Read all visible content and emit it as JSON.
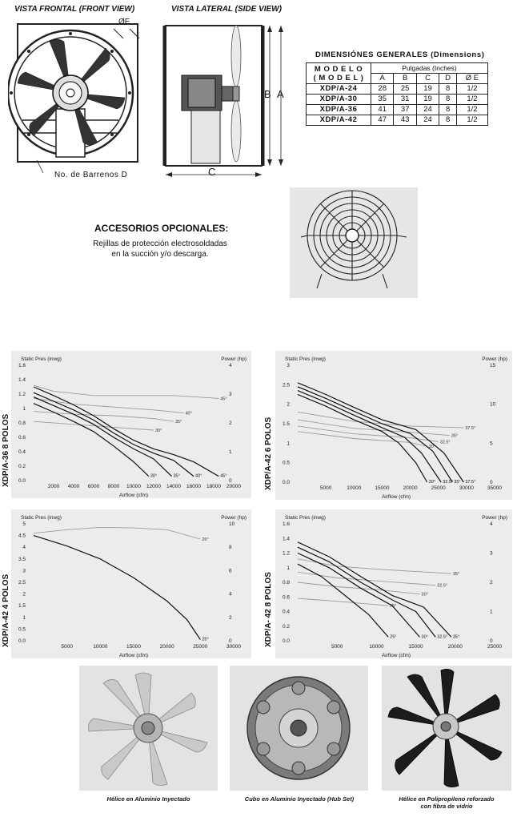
{
  "drawings": {
    "front_view_title": "VISTA FRONTAL (FRONT VIEW)",
    "side_view_title": "VISTA LATERAL (SIDE VIEW)",
    "diameter_label": "ØE",
    "bolt_holes_label": "No. de Barrenos D",
    "dim_b": "B",
    "dim_a": "A",
    "dim_c": "C"
  },
  "dimensions": {
    "title": "DIMENSIÓNES   GENERALES (Dimensions)",
    "model_header": "M O D E L O",
    "model_header_en": "( M O D E L )",
    "units_header": "Pulgadas (Inches)",
    "columns": [
      "A",
      "B",
      "C",
      "D",
      "Ø E"
    ],
    "rows": [
      {
        "model": "XDP/A-24",
        "values": [
          "28",
          "25",
          "19",
          "8",
          "1/2"
        ]
      },
      {
        "model": "XDP/A-30",
        "values": [
          "35",
          "31",
          "19",
          "8",
          "1/2"
        ]
      },
      {
        "model": "XDP/A-36",
        "values": [
          "41",
          "37",
          "24",
          "8",
          "1/2"
        ]
      },
      {
        "model": "XDP/A-42",
        "values": [
          "47",
          "43",
          "24",
          "8",
          "1/2"
        ]
      }
    ]
  },
  "accessories": {
    "title": "ACCESORIOS OPCIONALES:",
    "line1": "Rejillas de protección electrosoldadas",
    "line2": "en la succión y/o descarga."
  },
  "chart_data": [
    {
      "type": "line",
      "side_label": "XDP/A-36  8 POLOS",
      "ylabel": "Static Pres (inwg)",
      "y2label": "Power (hp)",
      "xlabel": "Airflow (cfm)",
      "xlim": [
        0,
        20000
      ],
      "ylim": [
        0,
        1.6
      ],
      "y2lim": [
        0,
        4
      ],
      "xticks": [
        2000,
        4000,
        6000,
        8000,
        10000,
        12000,
        14000,
        16000,
        18000,
        20000
      ],
      "xtick_labels": [
        "2000",
        "4000",
        "6000",
        "8000",
        "10000",
        "12000",
        "14000",
        "16000",
        "18000",
        "20000"
      ],
      "yticks": [
        0,
        0.2,
        0.4,
        0.6,
        0.8,
        1,
        1.2,
        1.4,
        1.6
      ],
      "ytick_labels": [
        "0.0",
        "0.2",
        "0.4",
        "0.6",
        "0.8",
        "1",
        "1.2",
        "1.4",
        "1.6"
      ],
      "y2ticks": [
        0,
        1,
        2,
        3,
        4
      ],
      "y2tick_labels": [
        "0",
        "1",
        "2",
        "3",
        "4"
      ],
      "pressure_curves": [
        {
          "label": "30°",
          "points": [
            [
              0,
              1.07
            ],
            [
              2000,
              0.95
            ],
            [
              4000,
              0.82
            ],
            [
              6000,
              0.68
            ],
            [
              8000,
              0.48
            ],
            [
              10000,
              0.26
            ],
            [
              11500,
              0.06
            ]
          ]
        },
        {
          "label": "35°",
          "points": [
            [
              0,
              1.16
            ],
            [
              2000,
              1.04
            ],
            [
              4000,
              0.92
            ],
            [
              6000,
              0.78
            ],
            [
              8000,
              0.6
            ],
            [
              10000,
              0.44
            ],
            [
              12000,
              0.3
            ],
            [
              13800,
              0.06
            ]
          ]
        },
        {
          "label": "40°",
          "points": [
            [
              0,
              1.22
            ],
            [
              2000,
              1.1
            ],
            [
              4000,
              0.98
            ],
            [
              6000,
              0.84
            ],
            [
              8000,
              0.66
            ],
            [
              10000,
              0.5
            ],
            [
              12000,
              0.38
            ],
            [
              14000,
              0.28
            ],
            [
              16000,
              0.06
            ]
          ]
        },
        {
          "label": "45°",
          "points": [
            [
              0,
              1.3
            ],
            [
              2000,
              1.18
            ],
            [
              4000,
              1.05
            ],
            [
              6000,
              0.9
            ],
            [
              8000,
              0.72
            ],
            [
              10000,
              0.56
            ],
            [
              12000,
              0.44
            ],
            [
              14000,
              0.36
            ],
            [
              16000,
              0.26
            ],
            [
              18500,
              0.06
            ]
          ]
        }
      ],
      "power_curves": [
        {
          "label": "30°",
          "points": [
            [
              0,
              2.05
            ],
            [
              4000,
              1.95
            ],
            [
              8000,
              1.85
            ],
            [
              12000,
              1.75
            ]
          ]
        },
        {
          "label": "35°",
          "points": [
            [
              0,
              2.4
            ],
            [
              4000,
              2.3
            ],
            [
              8000,
              2.25
            ],
            [
              12000,
              2.15
            ],
            [
              14000,
              2.05
            ]
          ]
        },
        {
          "label": "40°",
          "points": [
            [
              0,
              2.85
            ],
            [
              4000,
              2.65
            ],
            [
              8000,
              2.55
            ],
            [
              12000,
              2.45
            ],
            [
              15000,
              2.35
            ]
          ]
        },
        {
          "label": "45°",
          "points": [
            [
              0,
              3.3
            ],
            [
              2000,
              3.1
            ],
            [
              6000,
              2.95
            ],
            [
              10000,
              2.95
            ],
            [
              14000,
              2.95
            ],
            [
              18500,
              2.85
            ]
          ]
        }
      ]
    },
    {
      "type": "line",
      "side_label": "XDP/A-42 6 POLOS",
      "ylabel": "Static Pres (inwg)",
      "y2label": "Power (hp)",
      "xlabel": "Airflow (cfm)",
      "xlim": [
        0,
        35000
      ],
      "ylim": [
        0,
        3
      ],
      "y2lim": [
        0,
        15
      ],
      "xticks": [
        5000,
        10000,
        15000,
        20000,
        25000,
        30000,
        35000
      ],
      "xtick_labels": [
        "5000",
        "10000",
        "15000",
        "20000",
        "25000",
        "30000",
        "35000"
      ],
      "yticks": [
        0,
        0.5,
        1,
        1.5,
        2,
        2.5,
        3
      ],
      "ytick_labels": [
        "0.0",
        "0.5",
        "1",
        "1.5",
        "2",
        "2.5",
        "3"
      ],
      "y2ticks": [
        0,
        5,
        10,
        15
      ],
      "y2tick_labels": [
        "0",
        "5",
        "10",
        "15"
      ],
      "pressure_curves": [
        {
          "label": "30°",
          "points": [
            [
              0,
              2.25
            ],
            [
              5000,
              1.95
            ],
            [
              10000,
              1.6
            ],
            [
              15000,
              1.3
            ],
            [
              18000,
              1.0
            ],
            [
              21000,
              0.5
            ],
            [
              23000,
              0.0
            ]
          ]
        },
        {
          "label": "32.5°",
          "points": [
            [
              0,
              2.35
            ],
            [
              5000,
              2.05
            ],
            [
              10000,
              1.72
            ],
            [
              15000,
              1.4
            ],
            [
              19000,
              1.15
            ],
            [
              22000,
              0.75
            ],
            [
              25500,
              0.0
            ]
          ]
        },
        {
          "label": "35°",
          "points": [
            [
              0,
              2.45
            ],
            [
              5000,
              2.15
            ],
            [
              10000,
              1.82
            ],
            [
              15000,
              1.5
            ],
            [
              20000,
              1.25
            ],
            [
              24000,
              0.8
            ],
            [
              27500,
              0.0
            ]
          ]
        },
        {
          "label": "37.5°",
          "points": [
            [
              0,
              2.55
            ],
            [
              5000,
              2.25
            ],
            [
              10000,
              1.92
            ],
            [
              15000,
              1.6
            ],
            [
              21000,
              1.35
            ],
            [
              26000,
              0.75
            ],
            [
              29500,
              0.0
            ]
          ]
        }
      ],
      "power_curves": [
        {
          "label": "30°",
          "points": [
            [
              0,
              6.5
            ],
            [
              10000,
              5.6
            ],
            [
              20000,
              5.1
            ],
            [
              23000,
              4.6
            ]
          ]
        },
        {
          "label": "32.5°",
          "points": [
            [
              0,
              7.2
            ],
            [
              10000,
              6.2
            ],
            [
              20000,
              5.7
            ],
            [
              25000,
              5.2
            ]
          ]
        },
        {
          "label": "35°",
          "points": [
            [
              0,
              8.0
            ],
            [
              10000,
              6.9
            ],
            [
              20000,
              6.4
            ],
            [
              27000,
              6.0
            ]
          ]
        },
        {
          "label": "37.5°",
          "points": [
            [
              0,
              9.0
            ],
            [
              10000,
              7.8
            ],
            [
              20000,
              7.2
            ],
            [
              29500,
              7.0
            ]
          ]
        }
      ]
    },
    {
      "type": "line",
      "side_label": "XDP/A-42   4 POLOS",
      "ylabel": "Static Pres (inwg)",
      "y2label": "Power (hp)",
      "xlabel": "Airflow (cfm)",
      "xlim": [
        0,
        30000
      ],
      "ylim": [
        0,
        5
      ],
      "y2lim": [
        0,
        10
      ],
      "xticks": [
        5000,
        10000,
        15000,
        20000,
        25000,
        30000
      ],
      "xtick_labels": [
        "5000",
        "10000",
        "15000",
        "20000",
        "25000",
        "30000"
      ],
      "yticks": [
        0,
        0.5,
        1,
        1.5,
        2,
        2.5,
        3,
        3.5,
        4,
        4.5,
        5
      ],
      "ytick_labels": [
        "0.0",
        "0.5",
        "1",
        "1.5",
        "2",
        "2.5",
        "3",
        "3.5",
        "4",
        "4.5",
        "5"
      ],
      "y2ticks": [
        0,
        2,
        4,
        6,
        8,
        10
      ],
      "y2tick_labels": [
        "0",
        "2",
        "4",
        "6",
        "8",
        "10"
      ],
      "pressure_curves": [
        {
          "label": "25°",
          "points": [
            [
              0,
              4.5
            ],
            [
              5000,
              4.05
            ],
            [
              10000,
              3.5
            ],
            [
              15000,
              2.7
            ],
            [
              20000,
              1.7
            ],
            [
              23000,
              0.9
            ],
            [
              25000,
              0.05
            ]
          ]
        }
      ],
      "power_curves": [
        {
          "label": "25°",
          "points": [
            [
              0,
              9.2
            ],
            [
              5000,
              9.5
            ],
            [
              10000,
              9.7
            ],
            [
              15000,
              9.65
            ],
            [
              20000,
              9.5
            ],
            [
              25000,
              8.7
            ]
          ]
        }
      ]
    },
    {
      "type": "line",
      "side_label": "XDP/A- 42  8 POLOS",
      "ylabel": "Static Pres (inwg)",
      "y2label": "Power (hp)",
      "xlabel": "Airflow (cfm)",
      "xlim": [
        0,
        25000
      ],
      "ylim": [
        0,
        1.6
      ],
      "y2lim": [
        0,
        4
      ],
      "xticks": [
        5000,
        10000,
        15000,
        20000,
        25000
      ],
      "xtick_labels": [
        "5000",
        "10000",
        "15000",
        "20000",
        "25000"
      ],
      "yticks": [
        0,
        0.2,
        0.4,
        0.6,
        0.8,
        1,
        1.2,
        1.4,
        1.6
      ],
      "ytick_labels": [
        "0.0",
        "0.2",
        "0.4",
        "0.6",
        "0.8",
        "1",
        "1.2",
        "1.4",
        "1.6"
      ],
      "y2ticks": [
        0,
        1,
        2,
        3,
        4
      ],
      "y2tick_labels": [
        "0",
        "1",
        "2",
        "3",
        "4"
      ],
      "pressure_curves": [
        {
          "label": "25°",
          "points": [
            [
              0,
              1.05
            ],
            [
              3000,
              0.88
            ],
            [
              6000,
              0.62
            ],
            [
              9000,
              0.36
            ],
            [
              11500,
              0.05
            ]
          ]
        },
        {
          "label": "30°",
          "points": [
            [
              0,
              1.2
            ],
            [
              4000,
              1.0
            ],
            [
              8000,
              0.72
            ],
            [
              12000,
              0.48
            ],
            [
              15500,
              0.05
            ]
          ]
        },
        {
          "label": "32.5°",
          "points": [
            [
              0,
              1.28
            ],
            [
              4000,
              1.08
            ],
            [
              8000,
              0.8
            ],
            [
              12000,
              0.56
            ],
            [
              15000,
              0.4
            ],
            [
              17500,
              0.05
            ]
          ]
        },
        {
          "label": "35°",
          "points": [
            [
              0,
              1.35
            ],
            [
              4000,
              1.15
            ],
            [
              8000,
              0.88
            ],
            [
              12000,
              0.62
            ],
            [
              16000,
              0.46
            ],
            [
              19500,
              0.05
            ]
          ]
        }
      ],
      "power_curves": [
        {
          "label": "25°",
          "points": [
            [
              0,
              1.45
            ],
            [
              5000,
              1.35
            ],
            [
              11500,
              1.2
            ]
          ]
        },
        {
          "label": "30°",
          "points": [
            [
              0,
              2.0
            ],
            [
              5000,
              1.85
            ],
            [
              10000,
              1.75
            ],
            [
              15500,
              1.6
            ]
          ]
        },
        {
          "label": "32.5°",
          "points": [
            [
              0,
              2.35
            ],
            [
              5000,
              2.15
            ],
            [
              10000,
              2.05
            ],
            [
              17500,
              1.9
            ]
          ]
        },
        {
          "label": "35°",
          "points": [
            [
              0,
              2.8
            ],
            [
              5000,
              2.55
            ],
            [
              10000,
              2.45
            ],
            [
              19500,
              2.3
            ]
          ]
        }
      ]
    }
  ],
  "captions": {
    "photo1": "Hélice en Aluminio Inyectado",
    "photo2": "Cubo en Aluminio Inyectado (Hub Set)",
    "photo3_line1": "Hélice en Polipropileno reforzado",
    "photo3_line2": "con fibra de vidrio"
  },
  "colors": {
    "chart_bg": "#ececec",
    "pressure_curve": "#111111",
    "power_curve": "#9a9a9a",
    "photo_bg": "#e3e3e3"
  }
}
